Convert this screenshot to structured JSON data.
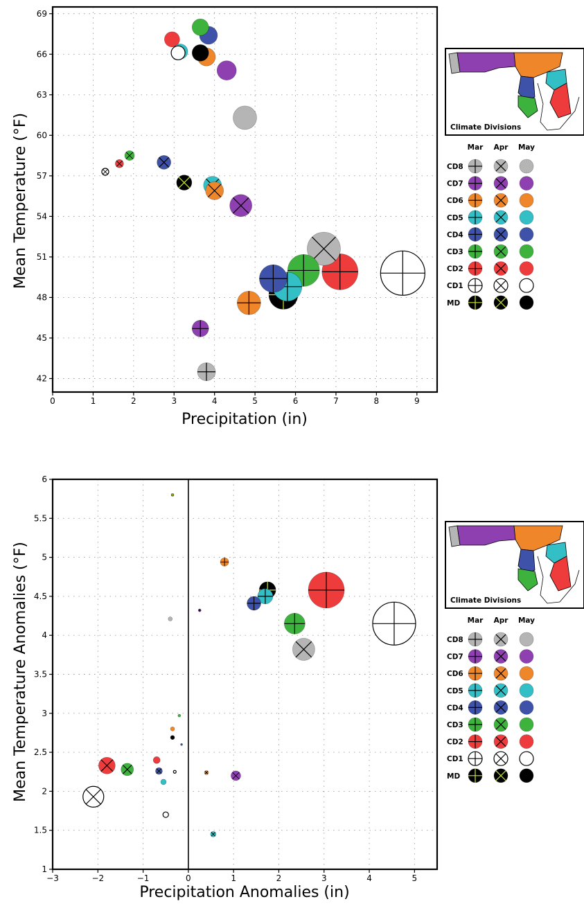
{
  "legend": {
    "map_caption": "Climate Divisions",
    "columns": [
      "Mar",
      "Apr",
      "May"
    ],
    "rows": [
      {
        "label": "CD8",
        "color": "#b5b5b5",
        "cross": "#000000"
      },
      {
        "label": "CD7",
        "color": "#8e3fb0",
        "cross": "#000000"
      },
      {
        "label": "CD6",
        "color": "#f0862a",
        "cross": "#000000"
      },
      {
        "label": "CD5",
        "color": "#33bfc6",
        "cross": "#000000"
      },
      {
        "label": "CD4",
        "color": "#3d52a8",
        "cross": "#000000"
      },
      {
        "label": "CD3",
        "color": "#3db33d",
        "cross": "#000000"
      },
      {
        "label": "CD2",
        "color": "#ee3b3b",
        "cross": "#000000"
      },
      {
        "label": "CD1",
        "color": "#ffffff",
        "cross": "#000000"
      },
      {
        "label": "MD",
        "color": "#000000",
        "cross": "#c8e83a"
      }
    ]
  },
  "chart_data": [
    {
      "type": "scatter",
      "title": "",
      "xlabel": "Precipitation (in)",
      "ylabel": "Mean Temperature (°F)",
      "xlim": [
        0,
        9.5
      ],
      "ylim": [
        41,
        69.5
      ],
      "xticks": [
        0,
        1,
        2,
        3,
        4,
        5,
        6,
        7,
        8,
        9
      ],
      "yticks": [
        42,
        45,
        48,
        51,
        54,
        57,
        60,
        63,
        66,
        69
      ],
      "grid": true,
      "marker_size_encoding": "precipitation",
      "marker_symbol": {
        "Mar": "plus",
        "Apr": "x",
        "May": "filled"
      },
      "points": [
        {
          "series": "CD3",
          "month": "May",
          "x": 3.65,
          "y": 68.0,
          "r": 12
        },
        {
          "series": "CD4",
          "month": "May",
          "x": 3.85,
          "y": 67.4,
          "r": 13
        },
        {
          "series": "CD2",
          "month": "May",
          "x": 2.95,
          "y": 67.1,
          "r": 11
        },
        {
          "series": "CD1",
          "month": "May",
          "x": 3.1,
          "y": 66.1,
          "r": 10
        },
        {
          "series": "CD5",
          "month": "May",
          "x": 3.15,
          "y": 66.2,
          "r": 11
        },
        {
          "series": "MD",
          "month": "May",
          "x": 3.65,
          "y": 66.1,
          "r": 12
        },
        {
          "series": "CD6",
          "month": "May",
          "x": 3.8,
          "y": 65.8,
          "r": 13
        },
        {
          "series": "CD7",
          "month": "May",
          "x": 4.3,
          "y": 64.8,
          "r": 14
        },
        {
          "series": "CD8",
          "month": "May",
          "x": 4.75,
          "y": 61.3,
          "r": 17
        },
        {
          "series": "CD1",
          "month": "Apr",
          "x": 1.3,
          "y": 57.3,
          "r": 5
        },
        {
          "series": "CD2",
          "month": "Apr",
          "x": 1.65,
          "y": 57.9,
          "r": 6
        },
        {
          "series": "CD3",
          "month": "Apr",
          "x": 1.9,
          "y": 58.5,
          "r": 7
        },
        {
          "series": "CD4",
          "month": "Apr",
          "x": 2.75,
          "y": 58.0,
          "r": 10
        },
        {
          "series": "MD",
          "month": "Apr",
          "x": 3.25,
          "y": 56.5,
          "r": 11
        },
        {
          "series": "CD5",
          "month": "Apr",
          "x": 3.95,
          "y": 56.3,
          "r": 13
        },
        {
          "series": "CD6",
          "month": "Apr",
          "x": 4.0,
          "y": 55.9,
          "r": 13
        },
        {
          "series": "CD7",
          "month": "Apr",
          "x": 4.65,
          "y": 54.8,
          "r": 16
        },
        {
          "series": "CD8",
          "month": "Apr",
          "x": 6.7,
          "y": 51.6,
          "r": 24
        },
        {
          "series": "CD1",
          "month": "Mar",
          "x": 8.65,
          "y": 49.8,
          "r": 32
        },
        {
          "series": "CD2",
          "month": "Mar",
          "x": 7.1,
          "y": 49.9,
          "r": 26
        },
        {
          "series": "CD3",
          "month": "Mar",
          "x": 6.2,
          "y": 50.0,
          "r": 23
        },
        {
          "series": "CD4",
          "month": "Mar",
          "x": 5.45,
          "y": 49.4,
          "r": 20
        },
        {
          "series": "MD",
          "month": "Mar",
          "x": 5.7,
          "y": 48.2,
          "r": 21
        },
        {
          "series": "CD5",
          "month": "Mar",
          "x": 5.8,
          "y": 48.8,
          "r": 21
        },
        {
          "series": "CD6",
          "month": "Mar",
          "x": 4.85,
          "y": 47.6,
          "r": 17
        },
        {
          "series": "CD7",
          "month": "Mar",
          "x": 3.65,
          "y": 45.7,
          "r": 12
        },
        {
          "series": "CD8",
          "month": "Mar",
          "x": 3.8,
          "y": 42.5,
          "r": 13
        }
      ]
    },
    {
      "type": "scatter",
      "title": "",
      "xlabel": "Precipitation Anomalies (in)",
      "ylabel": "Mean Temperature Anomalies (°F)",
      "xlim": [
        -3,
        5.5
      ],
      "ylim": [
        1,
        6
      ],
      "xticks": [
        -3,
        -2,
        -1,
        0,
        1,
        2,
        3,
        4,
        5
      ],
      "xtick_labels": [
        "−3",
        "−2",
        "−1",
        "0",
        "1",
        "2",
        "3",
        "4",
        "5"
      ],
      "yticks": [
        1,
        1.5,
        2,
        2.5,
        3,
        3.5,
        4,
        4.5,
        5,
        5.5,
        6
      ],
      "grid": true,
      "zero_line_x": 0,
      "marker_size_encoding": "precipitation",
      "marker_symbol": {
        "Mar": "plus",
        "Apr": "x",
        "May": "filled"
      },
      "points": [
        {
          "series": "MD",
          "month": "Mar",
          "x": -0.35,
          "y": 5.8,
          "r": 2
        },
        {
          "series": "CD6",
          "month": "Mar",
          "x": 0.8,
          "y": 4.94,
          "r": 6
        },
        {
          "series": "CD2",
          "month": "Mar",
          "x": 3.05,
          "y": 4.58,
          "r": 26
        },
        {
          "series": "MD",
          "month": "Mar",
          "x": 1.75,
          "y": 4.58,
          "r": 12
        },
        {
          "series": "CD5",
          "month": "Mar",
          "x": 1.7,
          "y": 4.5,
          "r": 11
        },
        {
          "series": "CD4",
          "month": "Mar",
          "x": 1.45,
          "y": 4.41,
          "r": 10
        },
        {
          "series": "CD7",
          "month": "Mar",
          "x": 0.25,
          "y": 4.32,
          "r": 2
        },
        {
          "series": "CD8",
          "month": "May",
          "x": -0.4,
          "y": 4.21,
          "r": 3
        },
        {
          "series": "CD3",
          "month": "Mar",
          "x": 2.35,
          "y": 4.15,
          "r": 15
        },
        {
          "series": "CD1",
          "month": "Mar",
          "x": 4.55,
          "y": 4.15,
          "r": 31
        },
        {
          "series": "CD8",
          "month": "Apr",
          "x": 2.55,
          "y": 3.82,
          "r": 16
        },
        {
          "series": "CD3",
          "month": "May",
          "x": -0.2,
          "y": 2.97,
          "r": 2
        },
        {
          "series": "CD6",
          "month": "May",
          "x": -0.35,
          "y": 2.8,
          "r": 3
        },
        {
          "series": "MD",
          "month": "May",
          "x": -0.35,
          "y": 2.69,
          "r": 3
        },
        {
          "series": "CD4",
          "month": "May",
          "x": -0.15,
          "y": 2.6,
          "r": 1.5
        },
        {
          "series": "CD2",
          "month": "May",
          "x": -0.7,
          "y": 2.4,
          "r": 5
        },
        {
          "series": "CD2",
          "month": "Apr",
          "x": -1.8,
          "y": 2.33,
          "r": 12
        },
        {
          "series": "CD3",
          "month": "Apr",
          "x": -1.35,
          "y": 2.28,
          "r": 9
        },
        {
          "series": "CD4",
          "month": "Apr",
          "x": -0.65,
          "y": 2.26,
          "r": 5
        },
        {
          "series": "CD1",
          "month": "May",
          "x": -0.3,
          "y": 2.25,
          "r": 2
        },
        {
          "series": "CD6",
          "month": "Apr",
          "x": 0.4,
          "y": 2.24,
          "r": 3
        },
        {
          "series": "CD7",
          "month": "Apr",
          "x": 1.05,
          "y": 2.2,
          "r": 7
        },
        {
          "series": "CD5",
          "month": "May",
          "x": -0.55,
          "y": 2.12,
          "r": 4
        },
        {
          "series": "CD1",
          "month": "Apr",
          "x": -2.1,
          "y": 1.93,
          "r": 15
        },
        {
          "series": "CD1",
          "month": "May",
          "x": -0.5,
          "y": 1.7,
          "r": 4
        },
        {
          "series": "CD5",
          "month": "Apr",
          "x": 0.55,
          "y": 1.45,
          "r": 4
        }
      ]
    }
  ]
}
